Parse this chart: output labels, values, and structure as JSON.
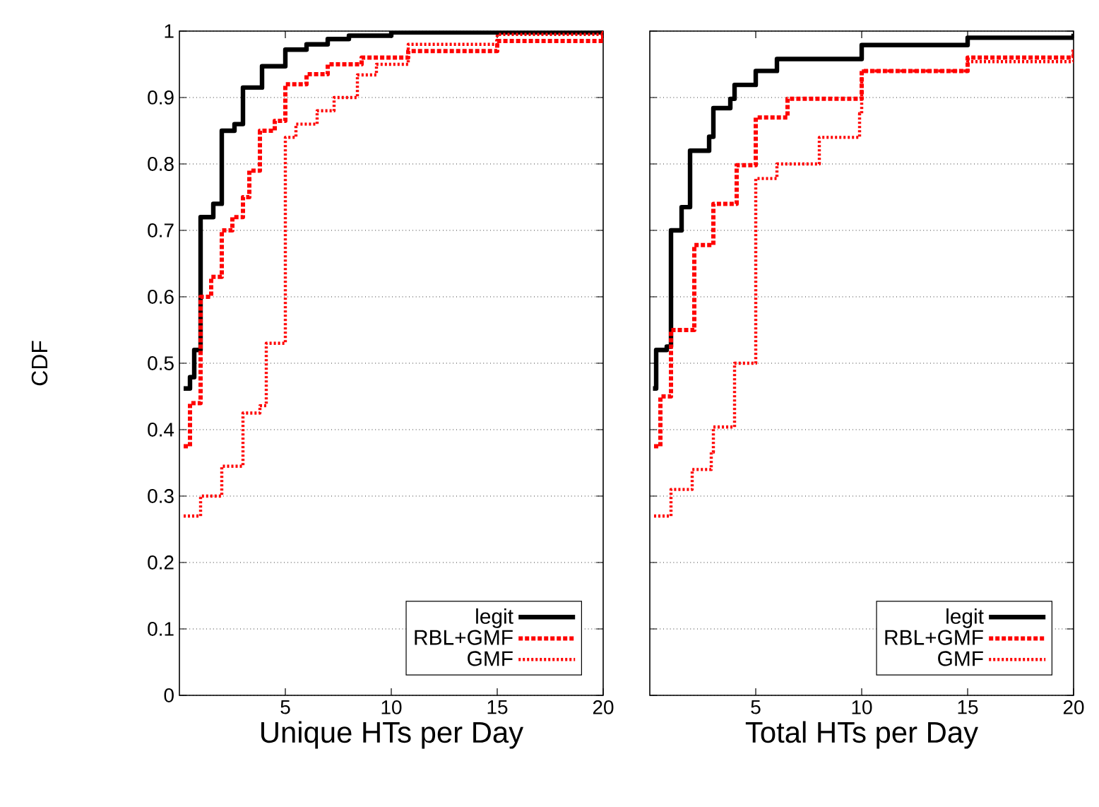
{
  "chart_data": [
    {
      "type": "step",
      "xlabel": "Unique HTs per Day",
      "ylabel": "CDF",
      "xlim": [
        0,
        20
      ],
      "ylim": [
        0,
        1
      ],
      "xticks": [
        5,
        10,
        15,
        20
      ],
      "yticks": [
        0,
        0.1,
        0.2,
        0.3,
        0.4,
        0.5,
        0.6,
        0.7,
        0.8,
        0.9,
        1
      ],
      "grid": "y",
      "legend": "bottom right",
      "series": [
        {
          "name": "legit",
          "color": "#000000",
          "line_style": "solid",
          "x": [
            0.2,
            0.5,
            0.7,
            1.0,
            1.6,
            2.0,
            2.6,
            3.0,
            3.9,
            5.0,
            6,
            7,
            8,
            10,
            20
          ],
          "values": [
            0.462,
            0.479,
            0.52,
            0.72,
            0.74,
            0.85,
            0.86,
            0.915,
            0.947,
            0.972,
            0.98,
            0.988,
            0.993,
            0.998,
            1.0
          ]
        },
        {
          "name": "RBL+GMF",
          "color": "#ff0000",
          "line_style": "dashed",
          "x": [
            0.2,
            0.5,
            1.0,
            1.5,
            2.0,
            2.5,
            3.0,
            3.3,
            3.8,
            4.5,
            5.0,
            6,
            7,
            8.6,
            10.8,
            15,
            20
          ],
          "values": [
            0.375,
            0.44,
            0.6,
            0.63,
            0.7,
            0.72,
            0.75,
            0.79,
            0.85,
            0.865,
            0.92,
            0.935,
            0.95,
            0.96,
            0.97,
            0.985,
            0.998
          ]
        },
        {
          "name": "GMF",
          "color": "#ff0000",
          "line_style": "dotted",
          "x": [
            0.2,
            1.0,
            2.0,
            3.0,
            3.8,
            4.1,
            5.0,
            5.5,
            6.5,
            7.3,
            8.4,
            9.3,
            10.8,
            15,
            20
          ],
          "values": [
            0.27,
            0.3,
            0.345,
            0.425,
            0.436,
            0.53,
            0.84,
            0.86,
            0.88,
            0.9,
            0.934,
            0.95,
            0.98,
            0.995,
            1.0
          ]
        }
      ]
    },
    {
      "type": "step",
      "xlabel": "Total HTs per Day",
      "xlim": [
        0,
        20
      ],
      "ylim": [
        0,
        1
      ],
      "xticks": [
        5,
        10,
        15,
        20
      ],
      "yticks": [
        0,
        0.1,
        0.2,
        0.3,
        0.4,
        0.5,
        0.6,
        0.7,
        0.8,
        0.9,
        1
      ],
      "grid": "y",
      "legend": "bottom right",
      "tick_labels": "x",
      "series": [
        {
          "name": "legit",
          "color": "#000000",
          "line_style": "solid",
          "x": [
            0.15,
            0.3,
            0.8,
            1.0,
            1.5,
            1.9,
            2.8,
            3.0,
            3.8,
            4.0,
            5,
            6,
            10,
            15,
            20
          ],
          "values": [
            0.462,
            0.52,
            0.525,
            0.7,
            0.735,
            0.82,
            0.841,
            0.884,
            0.898,
            0.919,
            0.94,
            0.958,
            0.979,
            0.99,
            0.996
          ]
        },
        {
          "name": "RBL+GMF",
          "color": "#ff0000",
          "line_style": "dashed",
          "x": [
            0.2,
            0.5,
            1.0,
            2.1,
            3.0,
            4.1,
            5.0,
            6.5,
            10,
            15,
            20
          ],
          "values": [
            0.375,
            0.45,
            0.55,
            0.678,
            0.74,
            0.798,
            0.87,
            0.898,
            0.94,
            0.96,
            0.972
          ]
        },
        {
          "name": "GMF",
          "color": "#ff0000",
          "line_style": "dotted",
          "x": [
            0.2,
            1.0,
            2.0,
            2.9,
            3.0,
            4.0,
            5.0,
            6,
            8,
            9.9,
            10,
            15,
            20
          ],
          "values": [
            0.27,
            0.31,
            0.34,
            0.366,
            0.404,
            0.5,
            0.778,
            0.8,
            0.84,
            0.876,
            0.94,
            0.954,
            0.968
          ]
        }
      ]
    }
  ]
}
